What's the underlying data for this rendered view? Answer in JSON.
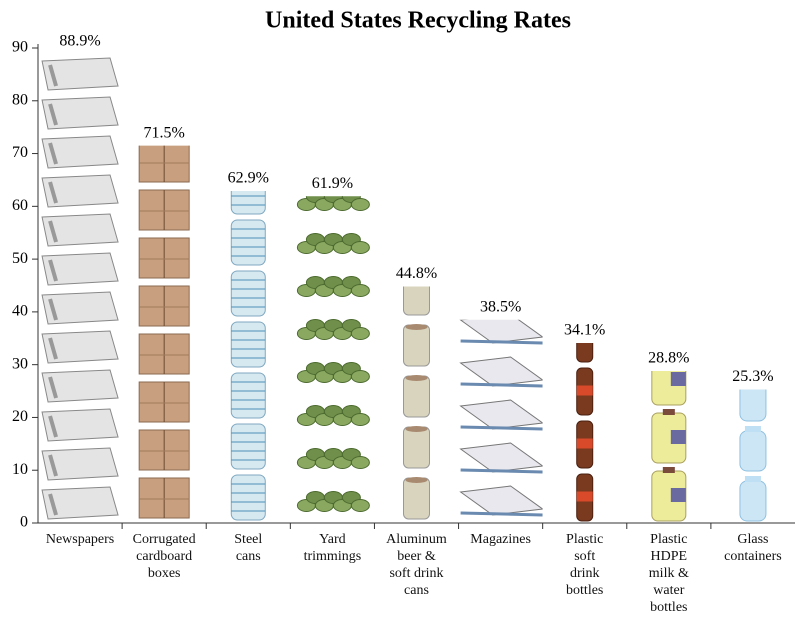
{
  "chart_data": {
    "type": "pictograph",
    "title": "United States Recycling Rates",
    "categories": [
      "Newspapers",
      "Corrugated\ncardboard\nboxes",
      "Steel\ncans",
      "Yard\ntrimmings",
      "Aluminum\nbeer &\nsoft drink\ncans",
      "Magazines",
      "Plastic\nsoft\ndrink\nbottles",
      "Plastic\nHDPE\nmilk &\nwater\nbottles",
      "Glass\ncontainers"
    ],
    "values": [
      88.9,
      71.5,
      62.9,
      61.9,
      44.8,
      38.5,
      34.1,
      28.8,
      25.3
    ],
    "value_labels": [
      "88.9%",
      "71.5%",
      "62.9%",
      "61.9%",
      "44.8%",
      "38.5%",
      "34.1%",
      "28.8%",
      "25.3%"
    ],
    "ylim": [
      0,
      90
    ],
    "yticks": [
      0,
      10,
      20,
      30,
      40,
      50,
      60,
      70,
      80,
      90
    ]
  }
}
